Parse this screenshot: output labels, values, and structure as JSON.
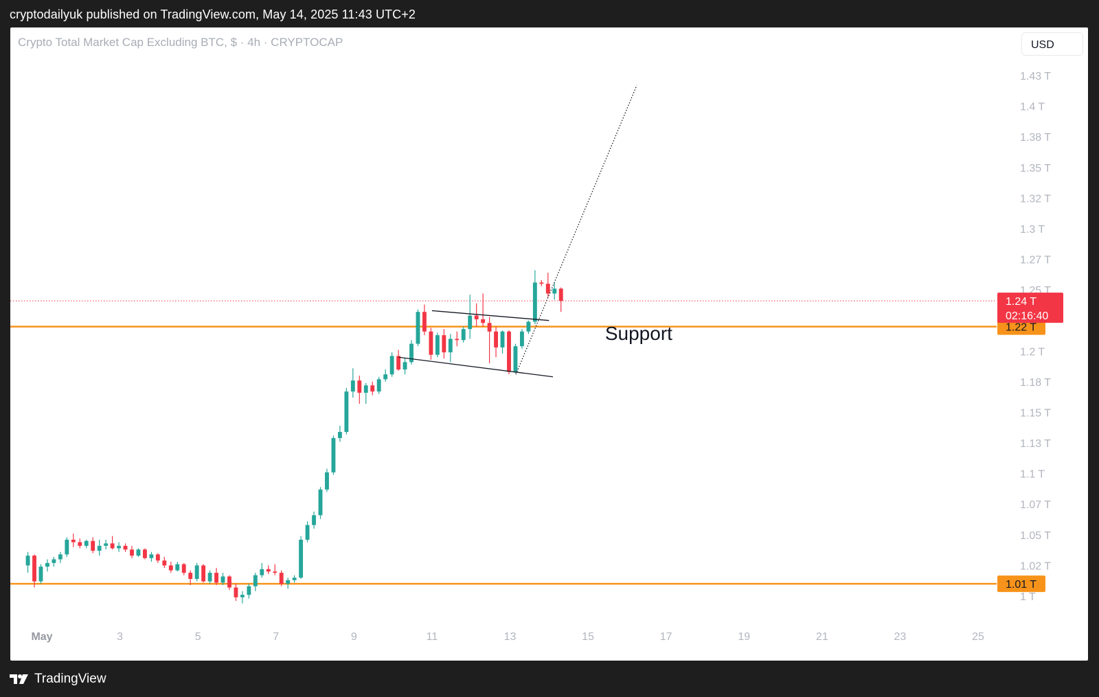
{
  "header": {
    "publisher_line": "cryptodailyuk published on TradingView.com, May 14, 2025 11:43 UTC+2"
  },
  "legend": {
    "title": "Crypto Total Market Cap Excluding BTC, $ · 4h · CRYPTOCAP"
  },
  "toolbar": {
    "currency_label": "USD"
  },
  "footer": {
    "brand": "TradingView",
    "logo_icon": "tradingview-logo-icon"
  },
  "colors": {
    "up": "#26a69a",
    "down": "#f23645",
    "support": "#f7931a",
    "price_line": "#f23645",
    "trend": "#131722",
    "axis_text": "#b2b5be"
  },
  "chart_data": {
    "type": "candlestick",
    "symbol": "Crypto Total Market Cap Excluding BTC, $",
    "interval": "4h",
    "exchange": "CRYPTOCAP",
    "currency": "USD",
    "y_unit": "T",
    "ylim": [
      0.975,
      1.465
    ],
    "y_ticks": [
      {
        "value": 1.0,
        "label": "1 T"
      },
      {
        "value": 1.025,
        "label": "1.02 T"
      },
      {
        "value": 1.05,
        "label": "1.05 T"
      },
      {
        "value": 1.075,
        "label": "1.07 T"
      },
      {
        "value": 1.1,
        "label": "1.1 T"
      },
      {
        "value": 1.125,
        "label": "1.13 T"
      },
      {
        "value": 1.15,
        "label": "1.15 T"
      },
      {
        "value": 1.175,
        "label": "1.18 T"
      },
      {
        "value": 1.2,
        "label": "1.2 T"
      },
      {
        "value": 1.25,
        "label": "1.25 T"
      },
      {
        "value": 1.275,
        "label": "1.27 T"
      },
      {
        "value": 1.3,
        "label": "1.3 T"
      },
      {
        "value": 1.325,
        "label": "1.32 T"
      },
      {
        "value": 1.35,
        "label": "1.35 T"
      },
      {
        "value": 1.375,
        "label": "1.38 T"
      },
      {
        "value": 1.4,
        "label": "1.4 T"
      },
      {
        "value": 1.425,
        "label": "1.43 T"
      }
    ],
    "x_ticks": [
      {
        "day": 1,
        "label": "May",
        "bold": true
      },
      {
        "day": 3,
        "label": "3"
      },
      {
        "day": 5,
        "label": "5"
      },
      {
        "day": 7,
        "label": "7"
      },
      {
        "day": 9,
        "label": "9"
      },
      {
        "day": 11,
        "label": "11"
      },
      {
        "day": 13,
        "label": "13"
      },
      {
        "day": 15,
        "label": "15"
      },
      {
        "day": 17,
        "label": "17"
      },
      {
        "day": 19,
        "label": "19"
      },
      {
        "day": 21,
        "label": "21"
      },
      {
        "day": 23,
        "label": "23"
      },
      {
        "day": 25,
        "label": "25"
      }
    ],
    "x_range_days": [
      0.62,
      25.4
    ],
    "candle_interval_days": 0.16667,
    "first_candle_day": 0.64,
    "ohlc": [
      [
        1.025,
        1.036,
        1.019,
        1.033
      ],
      [
        1.033,
        1.034,
        1.007,
        1.012
      ],
      [
        1.012,
        1.026,
        1.01,
        1.024
      ],
      [
        1.024,
        1.03,
        1.02,
        1.027
      ],
      [
        1.027,
        1.032,
        1.024,
        1.03
      ],
      [
        1.03,
        1.036,
        1.027,
        1.034
      ],
      [
        1.034,
        1.048,
        1.032,
        1.046
      ],
      [
        1.046,
        1.051,
        1.04,
        1.044
      ],
      [
        1.044,
        1.047,
        1.039,
        1.041
      ],
      [
        1.041,
        1.046,
        1.039,
        1.045
      ],
      [
        1.045,
        1.048,
        1.035,
        1.037
      ],
      [
        1.037,
        1.046,
        1.033,
        1.041
      ],
      [
        1.041,
        1.046,
        1.038,
        1.043
      ],
      [
        1.043,
        1.049,
        1.038,
        1.039
      ],
      [
        1.039,
        1.044,
        1.036,
        1.041
      ],
      [
        1.041,
        1.043,
        1.036,
        1.038
      ],
      [
        1.038,
        1.041,
        1.031,
        1.033
      ],
      [
        1.033,
        1.039,
        1.032,
        1.038
      ],
      [
        1.038,
        1.039,
        1.03,
        1.031
      ],
      [
        1.031,
        1.036,
        1.028,
        1.034
      ],
      [
        1.034,
        1.035,
        1.027,
        1.029
      ],
      [
        1.029,
        1.032,
        1.023,
        1.025
      ],
      [
        1.025,
        1.028,
        1.019,
        1.021
      ],
      [
        1.021,
        1.028,
        1.02,
        1.026
      ],
      [
        1.026,
        1.027,
        1.017,
        1.019
      ],
      [
        1.019,
        1.021,
        1.009,
        1.014
      ],
      [
        1.014,
        1.027,
        1.012,
        1.025
      ],
      [
        1.025,
        1.026,
        1.011,
        1.012
      ],
      [
        1.012,
        1.021,
        1.01,
        1.019
      ],
      [
        1.019,
        1.023,
        1.009,
        1.011
      ],
      [
        1.011,
        1.019,
        1.009,
        1.016
      ],
      [
        1.016,
        1.017,
        1.005,
        1.007
      ],
      [
        1.007,
        1.01,
        0.996,
        0.999
      ],
      [
        0.999,
        1.004,
        0.994,
        1.001
      ],
      [
        1.001,
        1.01,
        0.998,
        1.008
      ],
      [
        1.008,
        1.019,
        1.004,
        1.017
      ],
      [
        1.017,
        1.027,
        1.015,
        1.022
      ],
      [
        1.022,
        1.025,
        1.018,
        1.02
      ],
      [
        1.02,
        1.026,
        1.017,
        1.019
      ],
      [
        1.019,
        1.021,
        1.008,
        1.01
      ],
      [
        1.01,
        1.015,
        1.006,
        1.013
      ],
      [
        1.013,
        1.017,
        1.011,
        1.015
      ],
      [
        1.015,
        1.049,
        1.014,
        1.046
      ],
      [
        1.046,
        1.061,
        1.044,
        1.058
      ],
      [
        1.058,
        1.069,
        1.055,
        1.066
      ],
      [
        1.066,
        1.089,
        1.063,
        1.087
      ],
      [
        1.087,
        1.104,
        1.085,
        1.101
      ],
      [
        1.101,
        1.131,
        1.099,
        1.129
      ],
      [
        1.129,
        1.139,
        1.126,
        1.134
      ],
      [
        1.134,
        1.17,
        1.132,
        1.167
      ],
      [
        1.167,
        1.186,
        1.162,
        1.176
      ],
      [
        1.176,
        1.18,
        1.157,
        1.166
      ],
      [
        1.166,
        1.174,
        1.157,
        1.172
      ],
      [
        1.172,
        1.175,
        1.164,
        1.167
      ],
      [
        1.167,
        1.179,
        1.165,
        1.177
      ],
      [
        1.177,
        1.185,
        1.175,
        1.181
      ],
      [
        1.181,
        1.199,
        1.179,
        1.196
      ],
      [
        1.196,
        1.201,
        1.184,
        1.185
      ],
      [
        1.185,
        1.194,
        1.181,
        1.191
      ],
      [
        1.191,
        1.209,
        1.189,
        1.206
      ],
      [
        1.206,
        1.234,
        1.204,
        1.232
      ],
      [
        1.232,
        1.238,
        1.213,
        1.216
      ],
      [
        1.216,
        1.219,
        1.193,
        1.197
      ],
      [
        1.197,
        1.215,
        1.195,
        1.213
      ],
      [
        1.213,
        1.218,
        1.194,
        1.199
      ],
      [
        1.199,
        1.214,
        1.191,
        1.21
      ],
      [
        1.21,
        1.216,
        1.204,
        1.209
      ],
      [
        1.209,
        1.22,
        1.207,
        1.218
      ],
      [
        1.218,
        1.246,
        1.21,
        1.229
      ],
      [
        1.229,
        1.239,
        1.22,
        1.226
      ],
      [
        1.226,
        1.247,
        1.22,
        1.223
      ],
      [
        1.223,
        1.228,
        1.19,
        1.216
      ],
      [
        1.216,
        1.22,
        1.195,
        1.203
      ],
      [
        1.203,
        1.217,
        1.198,
        1.216
      ],
      [
        1.216,
        1.217,
        1.181,
        1.183
      ],
      [
        1.183,
        1.206,
        1.182,
        1.204
      ],
      [
        1.204,
        1.218,
        1.202,
        1.216
      ],
      [
        1.216,
        1.225,
        1.214,
        1.224
      ],
      [
        1.224,
        1.266,
        1.222,
        1.256
      ],
      [
        1.256,
        1.258,
        1.253,
        1.255
      ],
      [
        1.255,
        1.264,
        1.244,
        1.247
      ],
      [
        1.247,
        1.256,
        1.242,
        1.251
      ],
      [
        1.251,
        1.252,
        1.232,
        1.241
      ]
    ],
    "last_price": {
      "label": "1.24 T",
      "countdown": "02:16:40",
      "value": 1.241
    },
    "horizontal_levels": [
      {
        "value": 1.22,
        "label": "1.22 T"
      },
      {
        "value": 1.01,
        "label": "1.01 T"
      }
    ],
    "annotation": {
      "text": "Support",
      "day": 16.3,
      "value": 1.209
    },
    "trendlines": [
      {
        "from": [
          11.0,
          1.233
        ],
        "to": [
          14.0,
          1.225
        ],
        "style": "solid"
      },
      {
        "from": [
          10.15,
          1.195
        ],
        "to": [
          14.1,
          1.179
        ],
        "style": "solid"
      },
      {
        "from": [
          13.15,
          1.181
        ],
        "to": [
          16.25,
          1.417
        ],
        "style": "dotted"
      }
    ]
  }
}
